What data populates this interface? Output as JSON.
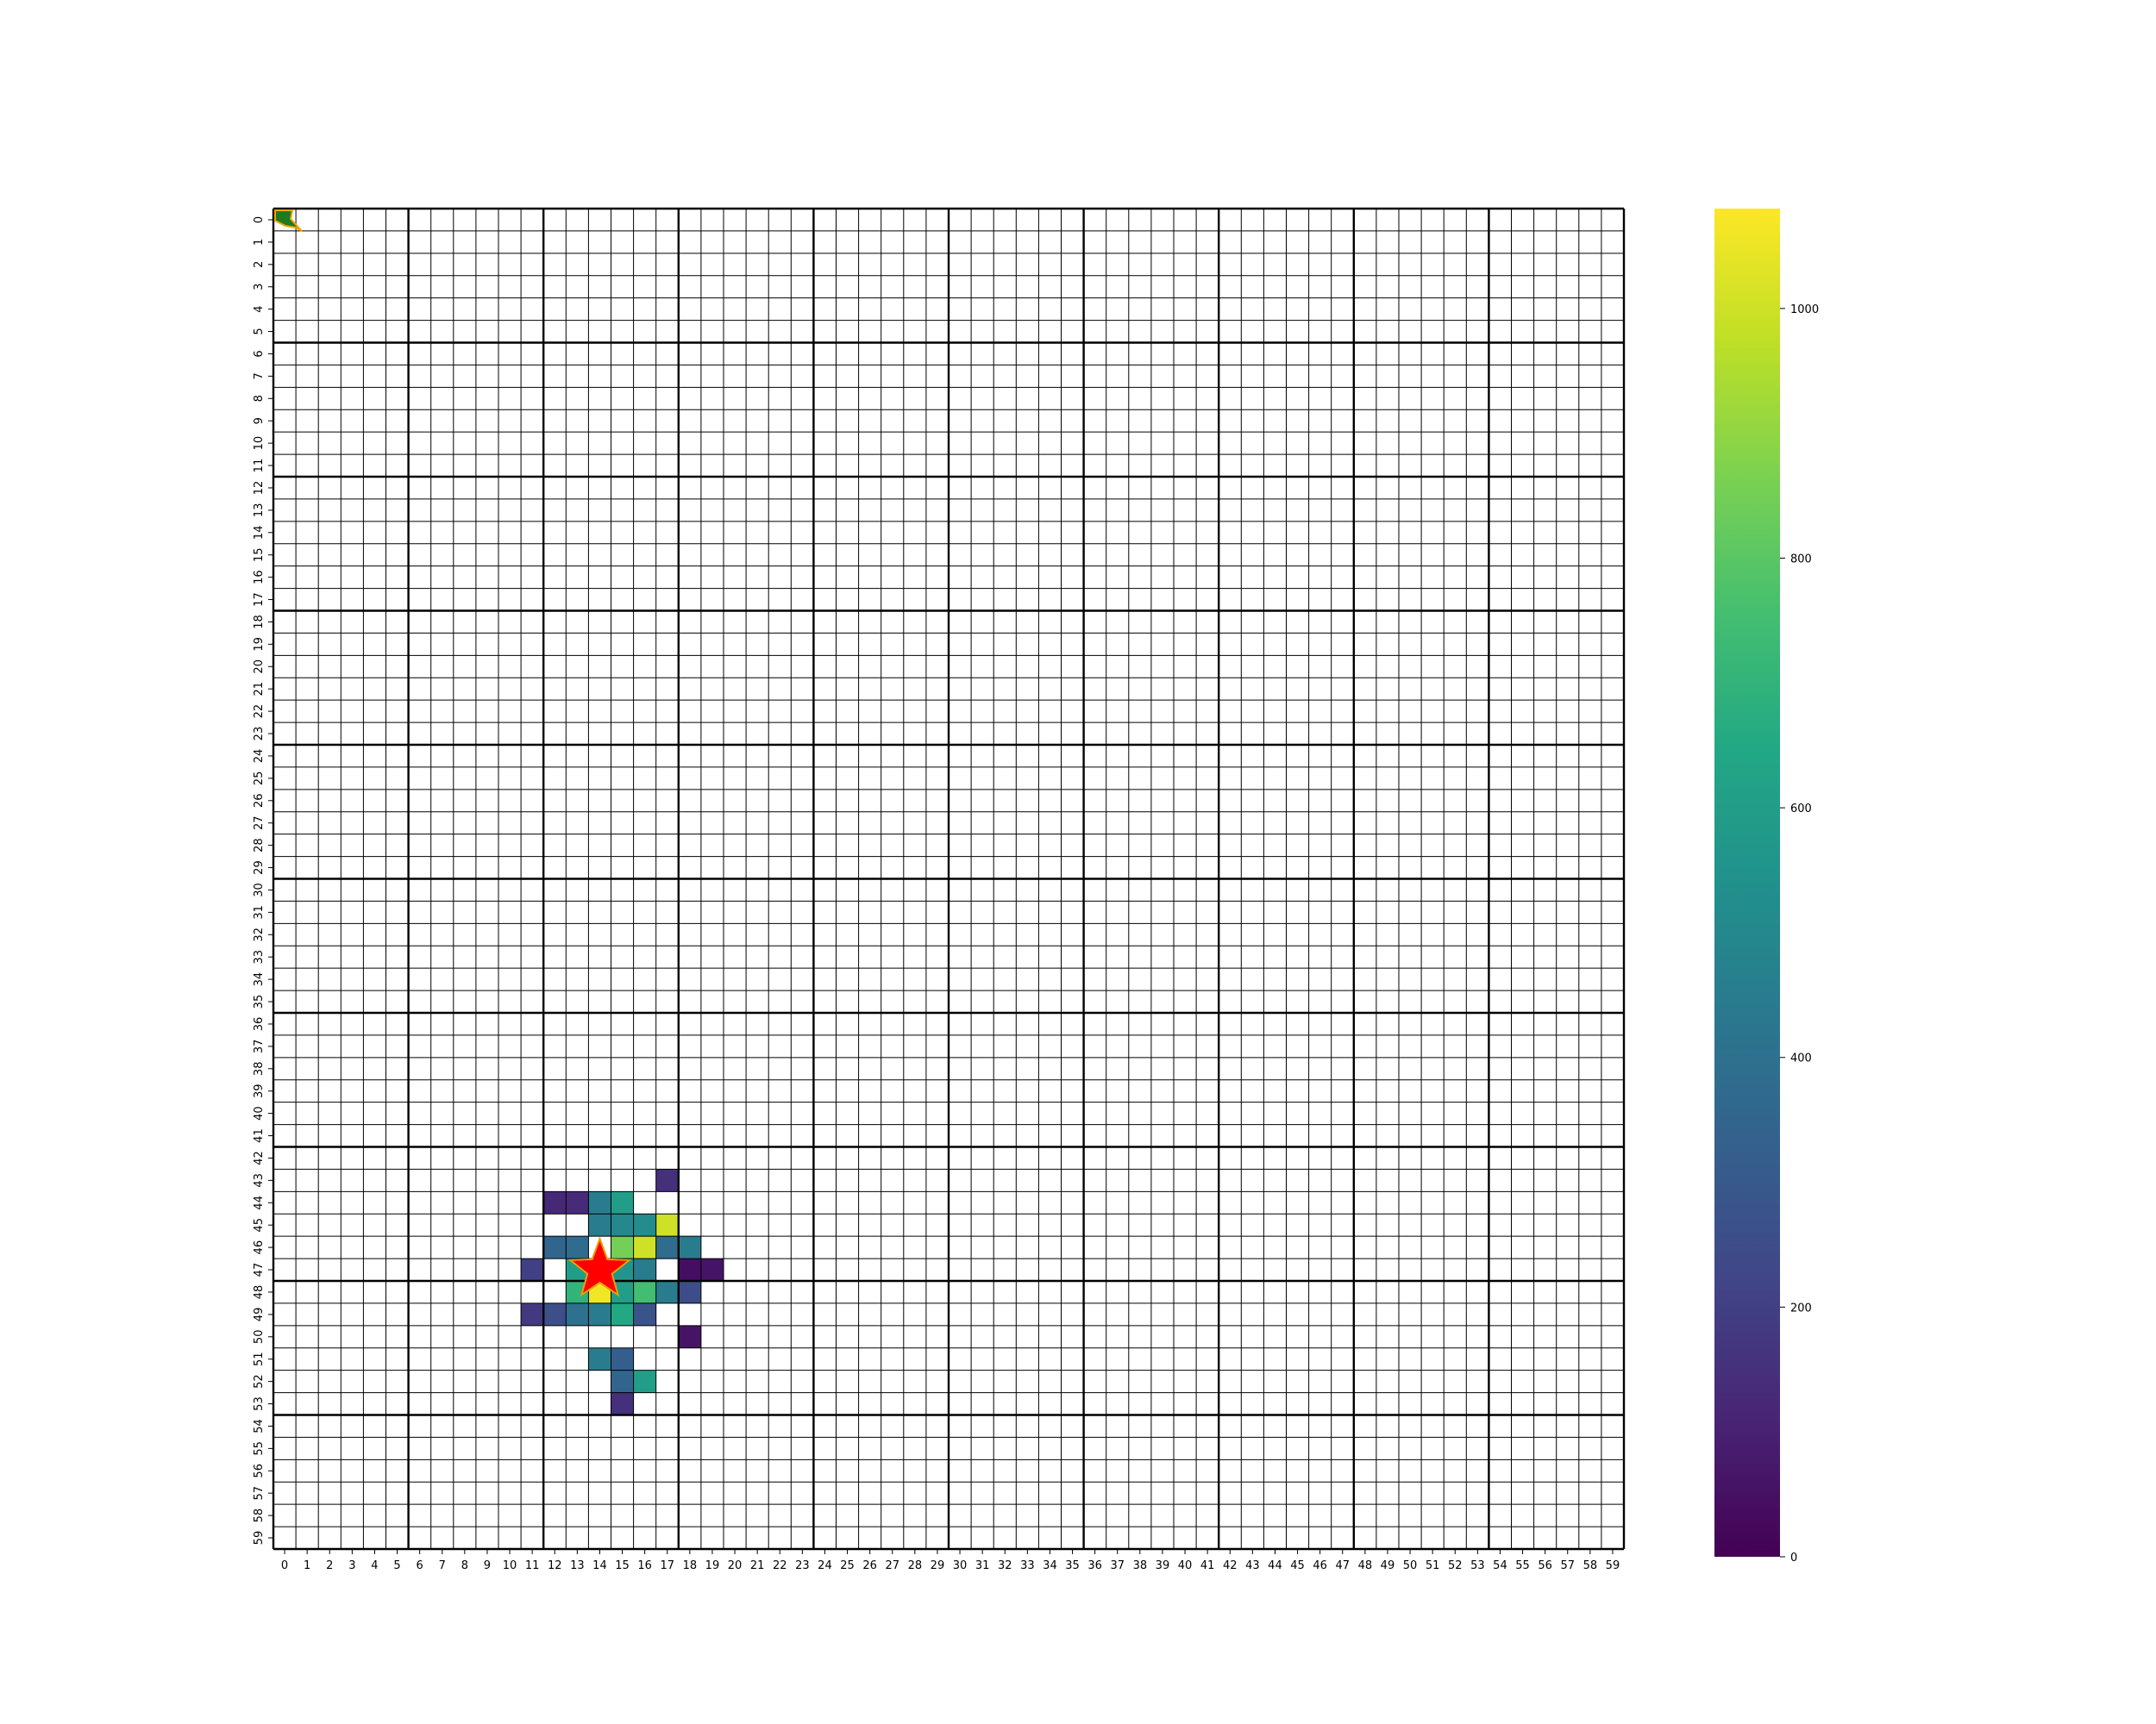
{
  "chart_data": {
    "type": "heatmap",
    "title": "",
    "xlabel": "",
    "ylabel": "",
    "grid": true,
    "rows": 60,
    "cols": 60,
    "x_tick_labels": [
      "0",
      "1",
      "2",
      "3",
      "4",
      "5",
      "6",
      "7",
      "8",
      "9",
      "10",
      "11",
      "12",
      "13",
      "14",
      "15",
      "16",
      "17",
      "18",
      "19",
      "20",
      "21",
      "22",
      "23",
      "24",
      "25",
      "26",
      "27",
      "28",
      "29",
      "30",
      "31",
      "32",
      "33",
      "34",
      "35",
      "36",
      "37",
      "38",
      "39",
      "40",
      "41",
      "42",
      "43",
      "44",
      "45",
      "46",
      "47",
      "48",
      "49",
      "50",
      "51",
      "52",
      "53",
      "54",
      "55",
      "56",
      "57",
      "58",
      "59"
    ],
    "y_tick_labels": [
      "0",
      "1",
      "2",
      "3",
      "4",
      "5",
      "6",
      "7",
      "8",
      "9",
      "10",
      "11",
      "12",
      "13",
      "14",
      "15",
      "16",
      "17",
      "18",
      "19",
      "20",
      "21",
      "22",
      "23",
      "24",
      "25",
      "26",
      "27",
      "28",
      "29",
      "30",
      "31",
      "32",
      "33",
      "34",
      "35",
      "36",
      "37",
      "38",
      "39",
      "40",
      "41",
      "42",
      "43",
      "44",
      "45",
      "46",
      "47",
      "48",
      "49",
      "50",
      "51",
      "52",
      "53",
      "54",
      "55",
      "56",
      "57",
      "58",
      "59"
    ],
    "colormap": "viridis",
    "vmin": 0,
    "vmax": 1080,
    "colorbar_ticks": [
      "0",
      "200",
      "400",
      "600",
      "800",
      "1000"
    ],
    "colorbar_tick_values": [
      0,
      200,
      400,
      600,
      800,
      1000
    ],
    "cells": [
      {
        "row": 43,
        "col": 17,
        "value": 150
      },
      {
        "row": 44,
        "col": 12,
        "value": 120
      },
      {
        "row": 44,
        "col": 13,
        "value": 130
      },
      {
        "row": 44,
        "col": 14,
        "value": 450
      },
      {
        "row": 44,
        "col": 15,
        "value": 600
      },
      {
        "row": 45,
        "col": 14,
        "value": 450
      },
      {
        "row": 45,
        "col": 15,
        "value": 500
      },
      {
        "row": 45,
        "col": 16,
        "value": 520
      },
      {
        "row": 45,
        "col": 17,
        "value": 1000
      },
      {
        "row": 46,
        "col": 12,
        "value": 350
      },
      {
        "row": 46,
        "col": 13,
        "value": 380
      },
      {
        "row": 46,
        "col": 15,
        "value": 850
      },
      {
        "row": 46,
        "col": 16,
        "value": 1000
      },
      {
        "row": 46,
        "col": 17,
        "value": 380
      },
      {
        "row": 46,
        "col": 18,
        "value": 450
      },
      {
        "row": 47,
        "col": 11,
        "value": 200
      },
      {
        "row": 47,
        "col": 13,
        "value": 600
      },
      {
        "row": 47,
        "col": 14,
        "value": 1080
      },
      {
        "row": 47,
        "col": 15,
        "value": 560
      },
      {
        "row": 47,
        "col": 16,
        "value": 450
      },
      {
        "row": 47,
        "col": 18,
        "value": 40
      },
      {
        "row": 47,
        "col": 19,
        "value": 60
      },
      {
        "row": 48,
        "col": 13,
        "value": 700
      },
      {
        "row": 48,
        "col": 14,
        "value": 1060
      },
      {
        "row": 48,
        "col": 15,
        "value": 600
      },
      {
        "row": 48,
        "col": 16,
        "value": 750
      },
      {
        "row": 48,
        "col": 17,
        "value": 450
      },
      {
        "row": 48,
        "col": 18,
        "value": 250
      },
      {
        "row": 49,
        "col": 11,
        "value": 180
      },
      {
        "row": 49,
        "col": 12,
        "value": 260
      },
      {
        "row": 49,
        "col": 13,
        "value": 400
      },
      {
        "row": 49,
        "col": 14,
        "value": 450
      },
      {
        "row": 49,
        "col": 15,
        "value": 650
      },
      {
        "row": 49,
        "col": 16,
        "value": 280
      },
      {
        "row": 50,
        "col": 18,
        "value": 60
      },
      {
        "row": 51,
        "col": 14,
        "value": 450
      },
      {
        "row": 51,
        "col": 15,
        "value": 320
      },
      {
        "row": 52,
        "col": 15,
        "value": 350
      },
      {
        "row": 52,
        "col": 16,
        "value": 600
      },
      {
        "row": 53,
        "col": 15,
        "value": 150
      }
    ],
    "markers": [
      {
        "shape": "star",
        "row": 47,
        "col": 14.5,
        "color": "#ff0000",
        "edge_color": "#e8a000"
      },
      {
        "shape": "arrow",
        "row": 0,
        "col": 0,
        "color": "#1f7a1f",
        "edge_color": "#f0a500"
      }
    ]
  },
  "colors": {
    "grid_line": "#000000",
    "background": "#ffffff"
  }
}
